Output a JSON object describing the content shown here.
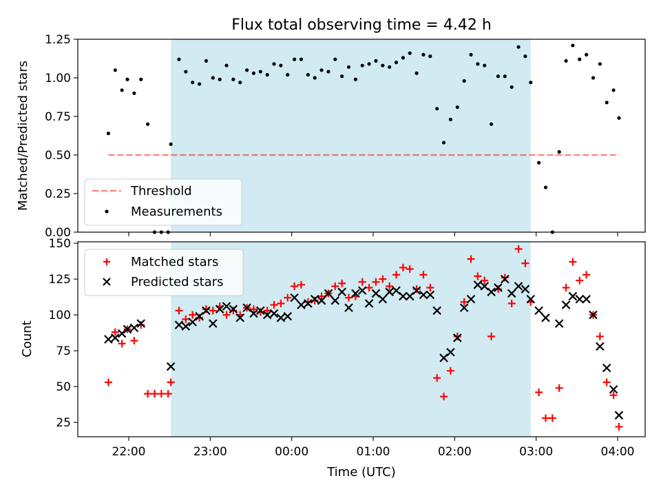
{
  "title": "Flux total observing time = 4.42 h",
  "colors": {
    "shade": "#add8e6",
    "threshold": "#ff0000",
    "measurement": "#000000",
    "matched": "#ff0000",
    "predicted": "#000000"
  },
  "chart_data": [
    {
      "type": "scatter",
      "ylabel": "Matched/Predicted stars",
      "ylim": [
        0,
        1.25
      ],
      "yticks": [
        0,
        0.25,
        0.5,
        0.75,
        1.0,
        1.25
      ],
      "ytick_labels": [
        "0.00",
        "0.25",
        "0.50",
        "0.75",
        "1.00",
        "1.25"
      ],
      "shaded_x_range": [
        "22:31",
        "02:56"
      ],
      "legend_placement": "lower-left",
      "threshold": {
        "name": "Threshold",
        "x": [
          "21:45",
          "04:01"
        ],
        "value": 0.5
      },
      "measurements": {
        "name": "Measurements",
        "x": [
          "21:45",
          "21:50",
          "21:55",
          "21:59",
          "22:04",
          "22:09",
          "22:14",
          "22:19",
          "22:24",
          "22:29",
          "22:31",
          "22:37",
          "22:42",
          "22:47",
          "22:52",
          "22:57",
          "23:02",
          "23:07",
          "23:12",
          "23:17",
          "23:22",
          "23:27",
          "23:32",
          "23:37",
          "23:42",
          "23:47",
          "23:52",
          "23:57",
          "00:02",
          "00:07",
          "00:12",
          "00:17",
          "00:22",
          "00:27",
          "00:32",
          "00:37",
          "00:42",
          "00:47",
          "00:52",
          "00:57",
          "01:02",
          "01:07",
          "01:12",
          "01:17",
          "01:22",
          "01:27",
          "01:32",
          "01:37",
          "01:42",
          "01:47",
          "01:52",
          "01:57",
          "02:02",
          "02:07",
          "02:12",
          "02:17",
          "02:22",
          "02:27",
          "02:32",
          "02:37",
          "02:42",
          "02:47",
          "02:52",
          "02:56",
          "03:02",
          "03:07",
          "03:12",
          "03:17",
          "03:22",
          "03:27",
          "03:32",
          "03:37",
          "03:42",
          "03:47",
          "03:52",
          "03:57",
          "04:01"
        ],
        "y": [
          0.64,
          1.05,
          0.92,
          0.99,
          0.9,
          0.99,
          0.7,
          0.0,
          0.0,
          0.0,
          0.57,
          1.12,
          1.04,
          0.97,
          0.96,
          1.11,
          1.0,
          0.99,
          1.08,
          0.99,
          0.97,
          1.05,
          1.03,
          1.04,
          1.02,
          1.09,
          1.08,
          1.02,
          1.12,
          1.12,
          1.02,
          1.0,
          1.05,
          1.04,
          1.12,
          1.01,
          1.07,
          0.99,
          1.08,
          1.09,
          1.11,
          1.08,
          1.07,
          1.1,
          1.13,
          1.16,
          1.03,
          1.15,
          1.14,
          0.8,
          0.58,
          0.73,
          0.81,
          0.98,
          1.15,
          1.09,
          1.08,
          0.7,
          1.01,
          1.01,
          0.94,
          1.2,
          1.14,
          0.97,
          0.45,
          0.29,
          0.0,
          0.52,
          1.11,
          1.21,
          1.12,
          1.15,
          1.0,
          1.09,
          0.84,
          0.92,
          0.74
        ]
      }
    },
    {
      "type": "scatter",
      "xlabel": "Time (UTC)",
      "ylabel": "Count",
      "ylim": [
        15,
        151
      ],
      "yticks": [
        25,
        50,
        75,
        100,
        125,
        150
      ],
      "ytick_labels": [
        "25",
        "50",
        "75",
        "100",
        "125",
        "150"
      ],
      "xticks": [
        "22:00",
        "23:00",
        "00:00",
        "01:00",
        "02:00",
        "03:00",
        "04:00"
      ],
      "shaded_x_range": [
        "22:31",
        "02:56"
      ],
      "legend_placement": "top-left",
      "series": [
        {
          "name": "Matched stars",
          "x": [
            "21:45",
            "21:50",
            "21:55",
            "21:59",
            "22:04",
            "22:09",
            "22:14",
            "22:19",
            "22:24",
            "22:29",
            "22:31",
            "22:37",
            "22:42",
            "22:47",
            "22:52",
            "22:57",
            "23:02",
            "23:07",
            "23:12",
            "23:17",
            "23:22",
            "23:27",
            "23:32",
            "23:37",
            "23:42",
            "23:47",
            "23:52",
            "23:57",
            "00:02",
            "00:07",
            "00:12",
            "00:17",
            "00:22",
            "00:27",
            "00:32",
            "00:37",
            "00:42",
            "00:47",
            "00:52",
            "00:57",
            "01:02",
            "01:07",
            "01:12",
            "01:17",
            "01:22",
            "01:27",
            "01:32",
            "01:37",
            "01:42",
            "01:47",
            "01:52",
            "01:57",
            "02:02",
            "02:07",
            "02:12",
            "02:17",
            "02:22",
            "02:27",
            "02:32",
            "02:37",
            "02:42",
            "02:47",
            "02:52",
            "02:56",
            "03:02",
            "03:07",
            "03:12",
            "03:17",
            "03:22",
            "03:27",
            "03:32",
            "03:37",
            "03:42",
            "03:47",
            "03:52",
            "03:57",
            "04:01"
          ],
          "y": [
            53,
            88,
            80,
            90,
            82,
            93,
            45,
            45,
            45,
            45,
            53,
            103,
            97,
            100,
            98,
            104,
            103,
            106,
            100,
            103,
            100,
            105,
            104,
            102,
            103,
            107,
            108,
            112,
            120,
            121,
            109,
            110,
            113,
            115,
            120,
            122,
            112,
            113,
            123,
            119,
            123,
            125,
            120,
            128,
            133,
            132,
            118,
            128,
            119,
            56,
            43,
            61,
            85,
            109,
            139,
            127,
            124,
            85,
            118,
            126,
            108,
            146,
            136,
            109,
            46,
            28,
            28,
            49,
            119,
            137,
            124,
            128,
            100,
            85,
            53,
            44,
            22
          ]
        },
        {
          "name": "Predicted stars",
          "x": [
            "21:45",
            "21:50",
            "21:55",
            "21:59",
            "22:04",
            "22:09",
            "22:31",
            "22:37",
            "22:42",
            "22:47",
            "22:52",
            "22:57",
            "23:02",
            "23:07",
            "23:12",
            "23:17",
            "23:22",
            "23:27",
            "23:32",
            "23:37",
            "23:42",
            "23:47",
            "23:52",
            "23:57",
            "00:02",
            "00:07",
            "00:12",
            "00:17",
            "00:22",
            "00:27",
            "00:32",
            "00:37",
            "00:42",
            "00:47",
            "00:52",
            "00:57",
            "01:02",
            "01:07",
            "01:12",
            "01:17",
            "01:22",
            "01:27",
            "01:32",
            "01:37",
            "01:42",
            "01:47",
            "01:52",
            "01:57",
            "02:02",
            "02:07",
            "02:12",
            "02:17",
            "02:22",
            "02:27",
            "02:32",
            "02:37",
            "02:42",
            "02:47",
            "02:52",
            "02:56",
            "03:02",
            "03:07",
            "03:17",
            "03:22",
            "03:27",
            "03:32",
            "03:37",
            "03:42",
            "03:47",
            "03:52",
            "03:57",
            "04:01"
          ],
          "y": [
            83,
            84,
            87,
            90,
            91,
            94,
            64,
            93,
            92,
            95,
            99,
            103,
            94,
            104,
            106,
            104,
            98,
            105,
            101,
            103,
            100,
            101,
            98,
            99,
            112,
            107,
            108,
            111,
            110,
            115,
            110,
            116,
            105,
            115,
            117,
            108,
            115,
            111,
            116,
            117,
            113,
            113,
            117,
            114,
            114,
            103,
            70,
            74,
            84,
            105,
            111,
            121,
            120,
            116,
            119,
            125,
            115,
            120,
            118,
            111,
            103,
            98,
            94,
            107,
            113,
            111,
            111,
            100,
            78,
            63,
            48,
            30
          ]
        }
      ]
    }
  ]
}
